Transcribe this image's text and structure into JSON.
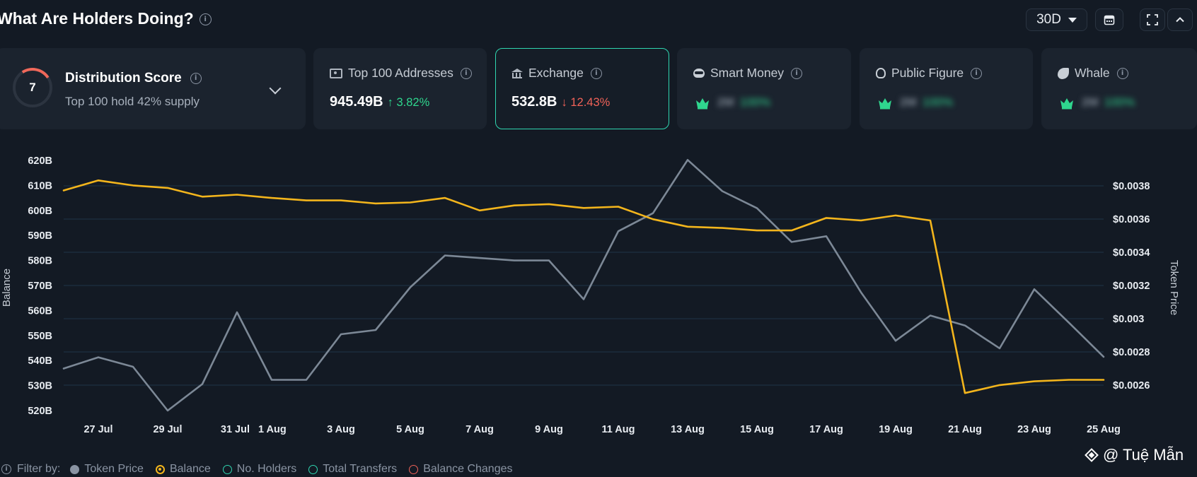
{
  "header": {
    "title": "What Are Holders Doing?",
    "period": "30D"
  },
  "distribution": {
    "score": "7",
    "title": "Distribution Score",
    "subtitle": "Top 100 hold 42% supply"
  },
  "cards": [
    {
      "label": "Top 100 Addresses",
      "value": "945.49B",
      "change": "3.82%",
      "direction": "up",
      "icon": "cash-icon"
    },
    {
      "label": "Exchange",
      "value": "532.8B",
      "change": "12.43%",
      "direction": "down",
      "icon": "bank-icon"
    },
    {
      "label": "Smart Money",
      "value": "2M",
      "change": "100%",
      "icon": "mask-icon"
    },
    {
      "label": "Public Figure",
      "value": "2M",
      "change": "100%",
      "icon": "bulb-icon"
    },
    {
      "label": "Whale",
      "value": "2M",
      "change": "100%",
      "icon": "whale-icon"
    }
  ],
  "filter": {
    "label": "Filter by:",
    "items": [
      {
        "label": "Token Price",
        "style": "solid-gray"
      },
      {
        "label": "Balance",
        "style": "ring-yellow"
      },
      {
        "label": "No. Holders",
        "style": "ring-teal"
      },
      {
        "label": "Total Transfers",
        "style": "ring-teal"
      },
      {
        "label": "Balance Changes",
        "style": "ring-red"
      }
    ]
  },
  "watermark": "@ Tuệ Mẫn",
  "colors": {
    "balance": "#f3b51c",
    "price": "#7c8896",
    "accent": "#2fd6b0",
    "up": "#2fd68e",
    "down": "#f06258"
  },
  "chart_data": {
    "type": "line",
    "xlabel_ticks": [
      "27 Jul",
      "29 Jul",
      "31 Jul",
      "1 Aug",
      "3 Aug",
      "5 Aug",
      "7 Aug",
      "9 Aug",
      "11 Aug",
      "13 Aug",
      "15 Aug",
      "17 Aug",
      "19 Aug",
      "21 Aug",
      "23 Aug",
      "25 Aug"
    ],
    "y_left": {
      "label": "Balance",
      "ticks": [
        "620B",
        "610B",
        "600B",
        "590B",
        "580B",
        "570B",
        "560B",
        "550B",
        "540B",
        "530B",
        "520B"
      ],
      "range": [
        520,
        620
      ]
    },
    "y_right": {
      "label": "Token Price",
      "ticks": [
        "$0.0038",
        "$0.0036",
        "$0.0034",
        "$0.0032",
        "$0.003",
        "$0.0028",
        "$0.0026"
      ],
      "range": [
        0.0026,
        0.0038
      ]
    },
    "x": [
      "26 Jul",
      "27 Jul",
      "28 Jul",
      "29 Jul",
      "30 Jul",
      "31 Jul",
      "1 Aug",
      "2 Aug",
      "3 Aug",
      "4 Aug",
      "5 Aug",
      "6 Aug",
      "7 Aug",
      "8 Aug",
      "9 Aug",
      "10 Aug",
      "11 Aug",
      "12 Aug",
      "13 Aug",
      "14 Aug",
      "15 Aug",
      "16 Aug",
      "17 Aug",
      "18 Aug",
      "19 Aug",
      "20 Aug",
      "21 Aug",
      "22 Aug",
      "23 Aug",
      "24 Aug",
      "25 Aug"
    ],
    "series": [
      {
        "name": "Balance",
        "axis": "left",
        "values": [
          608,
          612,
          610,
          609,
          605.5,
          606.3,
          605,
          604,
          604,
          602.8,
          603.2,
          605,
          600,
          602,
          602.5,
          601,
          601.5,
          596.5,
          593.5,
          593,
          592,
          592,
          597,
          596,
          598,
          596,
          527,
          530.2,
          531.7,
          532.3,
          532.3
        ]
      },
      {
        "name": "Token Price",
        "axis": "left",
        "values": [
          536.8,
          541.3,
          537.5,
          520,
          530.6,
          559.3,
          532.3,
          532.3,
          550.5,
          552.2,
          569.3,
          582,
          581,
          580,
          580,
          564.5,
          591.7,
          598.9,
          620.2,
          607.7,
          600.9,
          587.4,
          589.7,
          567.3,
          547.9,
          558,
          554,
          544.9,
          568.5,
          555.1,
          541.5
        ]
      }
    ],
    "grid": true
  }
}
